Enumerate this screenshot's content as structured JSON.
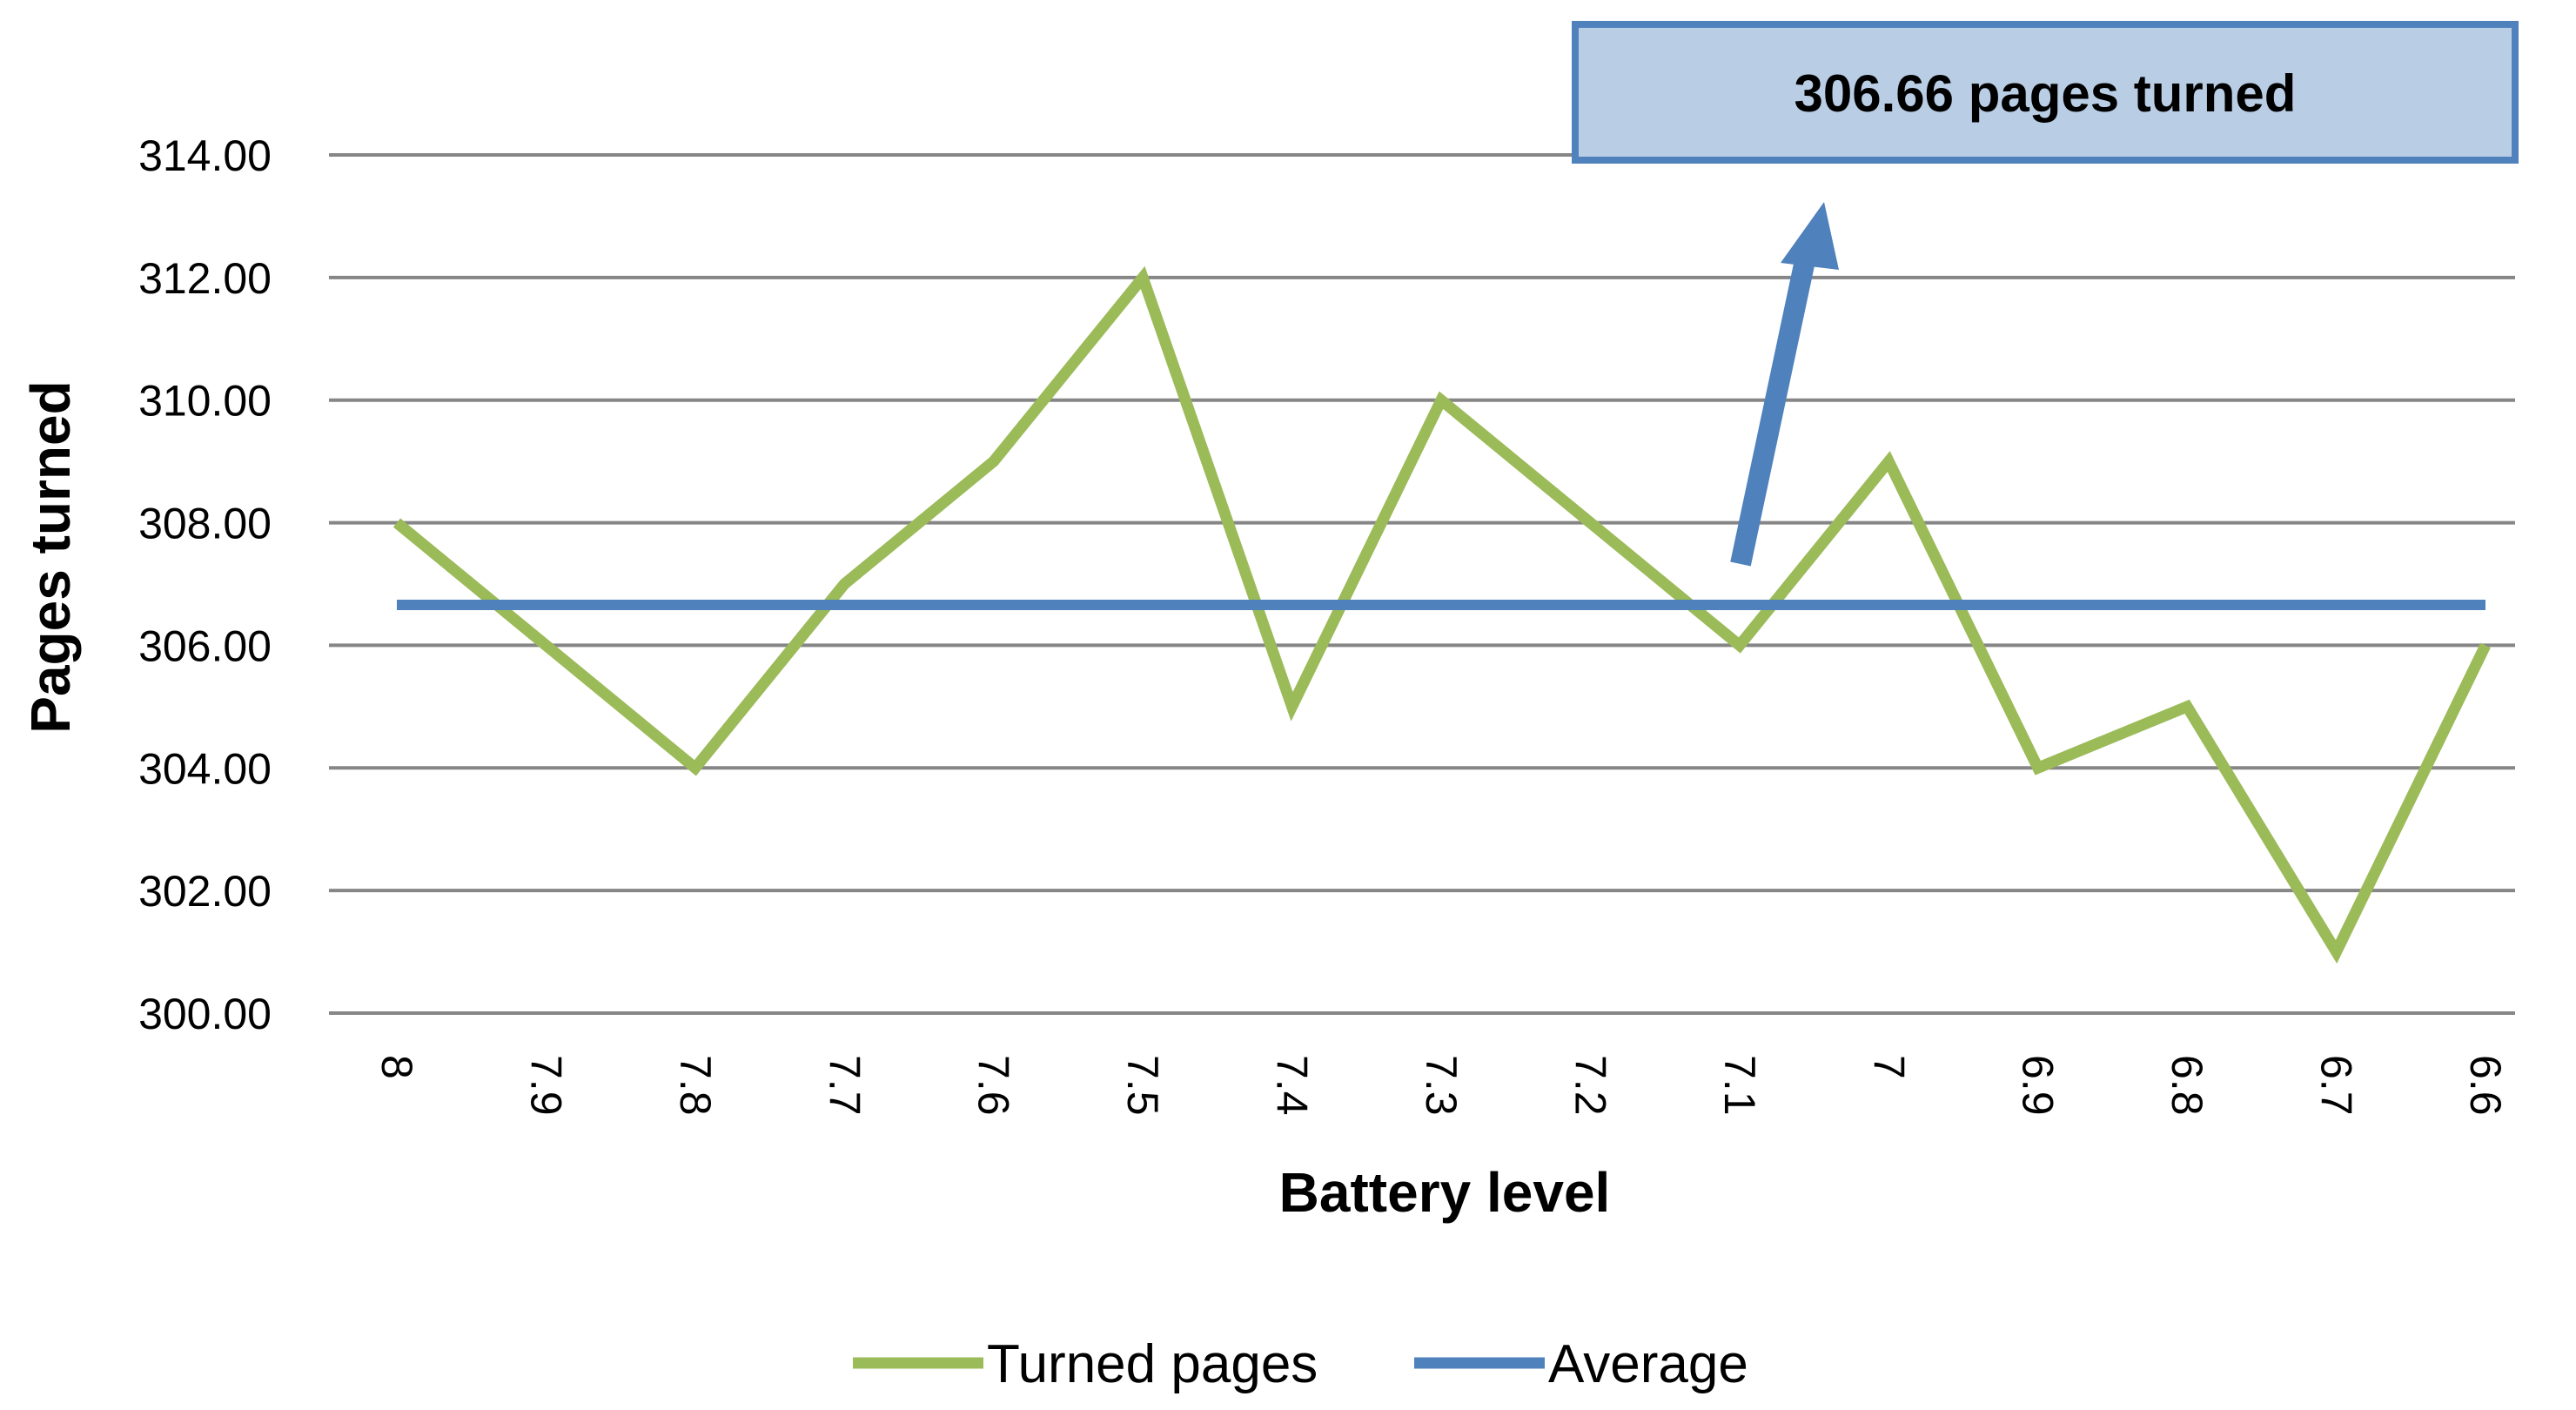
{
  "chart_data": {
    "type": "line",
    "title": "",
    "xlabel": "Battery level",
    "ylabel": "Pages  turned",
    "ylim": [
      300,
      314
    ],
    "y_tick_step": 2,
    "y_tick_labels": [
      "300.00",
      "302.00",
      "304.00",
      "306.00",
      "308.00",
      "310.00",
      "312.00",
      "314.00"
    ],
    "grid": "horizontal",
    "legend_position": "bottom",
    "categories": [
      "8",
      "7.9",
      "7.8",
      "7.7",
      "7.6",
      "7.5",
      "7.4",
      "7.3",
      "7.2",
      "7.1",
      "7",
      "6.9",
      "6.8",
      "6.7",
      "6.6"
    ],
    "series": [
      {
        "name": "Turned pages",
        "color": "#9BBB59",
        "values": [
          308,
          306,
          304,
          307,
          309,
          312,
          305,
          310,
          308,
          306,
          309,
          304,
          305,
          301,
          306
        ]
      },
      {
        "name": "Average",
        "color": "#4F81BD",
        "values": [
          306.66,
          306.66,
          306.66,
          306.66,
          306.66,
          306.66,
          306.66,
          306.66,
          306.66,
          306.66,
          306.66,
          306.66,
          306.66,
          306.66,
          306.66
        ]
      }
    ],
    "annotation": {
      "text": "306.66 pages turned",
      "fill_color": "#B9CDE5",
      "border_color": "#4F81BD",
      "arrow_color": "#4F81BD"
    }
  }
}
